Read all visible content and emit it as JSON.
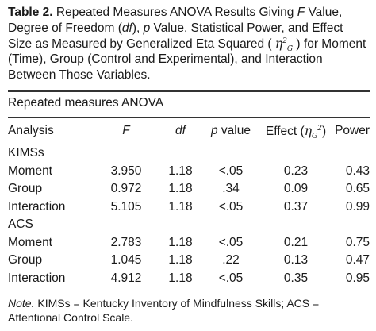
{
  "caption": {
    "label": "Table 2.",
    "s1": " Repeated Measures ANOVA Results Giving ",
    "f": "F",
    "s2": " Value, Degree of Freedom (",
    "df": "df",
    "s3": "), ",
    "p": "p",
    "s4": " Value, Statistical Power, and Effect Size as Measured by Generalized Eta Squared ( ",
    "eta": "η",
    "eta_sup": "2",
    "eta_sub": "G",
    "s5": " ) for Moment (Time), Group (Control and Experimental), and Interaction Between Those Variables."
  },
  "subheading": "Repeated measures ANOVA",
  "headers": {
    "analysis": "Analysis",
    "f": "F",
    "df": "df",
    "p_sym": "p",
    "p_rest": " value",
    "effect_pre": "Effect (",
    "effect_eta": "η",
    "effect_sub": "G",
    "effect_sup": "2",
    "effect_post": ")",
    "power": "Power"
  },
  "groups": [
    {
      "name": "KIMSs",
      "rows": [
        {
          "label": "Moment",
          "f": "3.950",
          "df": "1.18",
          "p": "<.05",
          "effect": "0.23",
          "power": "0.43"
        },
        {
          "label": "Group",
          "f": "0.972",
          "df": "1.18",
          "p": ".34",
          "effect": "0.09",
          "power": "0.65"
        },
        {
          "label": "Interaction",
          "f": "5.105",
          "df": "1.18",
          "p": "<.05",
          "effect": "0.37",
          "power": "0.99"
        }
      ]
    },
    {
      "name": "ACS",
      "rows": [
        {
          "label": "Moment",
          "f": "2.783",
          "df": "1.18",
          "p": "<.05",
          "effect": "0.21",
          "power": "0.75"
        },
        {
          "label": "Group",
          "f": "1.045",
          "df": "1.18",
          "p": ".22",
          "effect": "0.13",
          "power": "0.47"
        },
        {
          "label": "Interaction",
          "f": "4.912",
          "df": "1.18",
          "p": "<.05",
          "effect": "0.35",
          "power": "0.95"
        }
      ]
    }
  ],
  "note": {
    "label": "Note.",
    "text": " KIMSs = Kentucky Inventory of Mindfulness Skills; ACS = Attentional Control Scale."
  }
}
